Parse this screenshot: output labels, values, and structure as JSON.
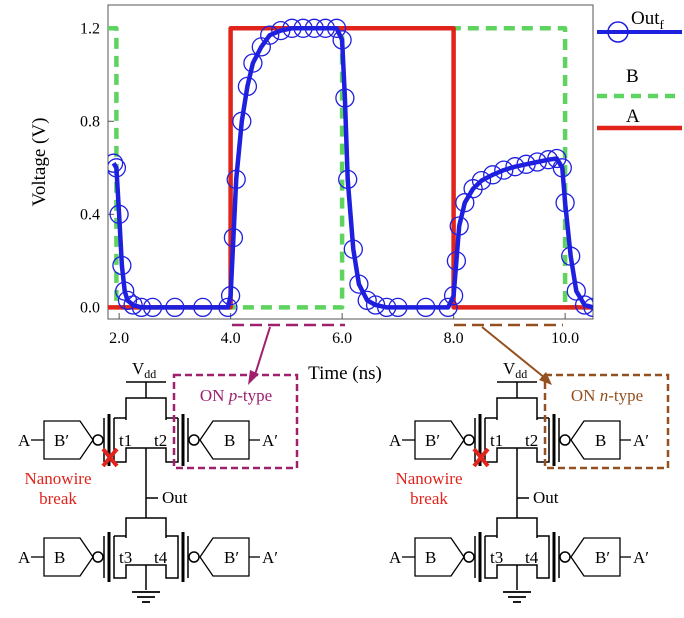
{
  "chart_data": {
    "type": "line",
    "title": "",
    "xlabel": "Time (ns)",
    "ylabel": "Voltage (V)",
    "xlim": [
      1.8,
      10.5
    ],
    "ylim": [
      -0.05,
      1.3
    ],
    "x_ticks": [
      "2.0",
      "4.0",
      "6.0",
      "8.0",
      "10.0"
    ],
    "y_ticks": [
      "0.0",
      "0.4",
      "0.8",
      "1.2"
    ],
    "legend_position": "right, outside plot",
    "series": [
      {
        "name": "Out",
        "name_subscript": "f",
        "style": "solid line with circle markers",
        "color": "#1f1fe0",
        "x": [
          1.9,
          1.95,
          2.0,
          2.05,
          2.1,
          2.15,
          2.25,
          2.4,
          2.6,
          3.0,
          3.5,
          3.95,
          4.0,
          4.05,
          4.1,
          4.2,
          4.3,
          4.4,
          4.55,
          4.7,
          4.9,
          5.1,
          5.3,
          5.5,
          5.7,
          5.9,
          6.0,
          6.05,
          6.1,
          6.2,
          6.3,
          6.45,
          6.6,
          6.8,
          7.0,
          7.5,
          7.9,
          8.0,
          8.05,
          8.1,
          8.2,
          8.35,
          8.5,
          8.7,
          8.9,
          9.1,
          9.3,
          9.5,
          9.7,
          9.85,
          9.95,
          10.0,
          10.1,
          10.2,
          10.35,
          10.5
        ],
        "y": [
          0.62,
          0.6,
          0.4,
          0.18,
          0.07,
          0.03,
          0.01,
          0.0,
          0.0,
          0.0,
          0.0,
          0.0,
          0.05,
          0.3,
          0.55,
          0.8,
          0.95,
          1.05,
          1.12,
          1.17,
          1.19,
          1.2,
          1.2,
          1.2,
          1.2,
          1.2,
          1.15,
          0.9,
          0.55,
          0.25,
          0.1,
          0.03,
          0.01,
          0.0,
          0.0,
          0.0,
          0.0,
          0.05,
          0.2,
          0.35,
          0.45,
          0.51,
          0.545,
          0.57,
          0.59,
          0.605,
          0.615,
          0.625,
          0.635,
          0.64,
          0.6,
          0.45,
          0.22,
          0.07,
          0.01,
          0.0
        ]
      },
      {
        "name": "B",
        "style": "dashed",
        "color": "#5fd35f",
        "x": [
          1.8,
          1.95,
          1.95,
          6.0,
          6.0,
          10.0,
          10.0,
          10.5
        ],
        "y": [
          1.2,
          1.2,
          0.0,
          0.0,
          1.2,
          1.2,
          0.0,
          0.0
        ]
      },
      {
        "name": "A",
        "style": "solid",
        "color": "#e0241b",
        "x": [
          1.8,
          4.0,
          4.0,
          8.0,
          8.0,
          10.5
        ],
        "y": [
          0.0,
          0.0,
          1.2,
          1.2,
          0.0,
          0.0
        ]
      }
    ],
    "annotations": {
      "p_bracket": [
        4.0,
        6.0
      ],
      "n_bracket": [
        8.0,
        10.0
      ],
      "p_color": "#a0206e",
      "n_color": "#94501e"
    }
  },
  "circuits": [
    {
      "vdd": "V",
      "vdd_sub": "dd",
      "out": "Out",
      "label_prefix": "ON ",
      "label_type": "p",
      "label_suffix": "-type",
      "break_line1": "Nanowire",
      "break_line2": "break",
      "t1": "t1",
      "t2": "t2",
      "t3": "t3",
      "t4": "t4",
      "left_top_outer": "A",
      "left_top_inner": "B′",
      "right_top_inner": "B",
      "right_top_outer": "A′",
      "left_bot_outer": "A",
      "left_bot_inner": "B",
      "right_bot_inner": "B′",
      "right_bot_outer": "A′"
    },
    {
      "vdd": "V",
      "vdd_sub": "dd",
      "out": "Out",
      "label_prefix": "ON ",
      "label_type": "n",
      "label_suffix": "-type",
      "break_line1": "Nanowire",
      "break_line2": "break",
      "t1": "t1",
      "t2": "t2",
      "t3": "t3",
      "t4": "t4",
      "left_top_outer": "A",
      "left_top_inner": "B′",
      "right_top_inner": "B",
      "right_top_outer": "A′",
      "left_bot_outer": "A",
      "left_bot_inner": "B",
      "right_bot_inner": "B′",
      "right_bot_outer": "A′"
    }
  ],
  "colors": {
    "break_text": "#e0241b",
    "break_mark": "#e0241b"
  }
}
